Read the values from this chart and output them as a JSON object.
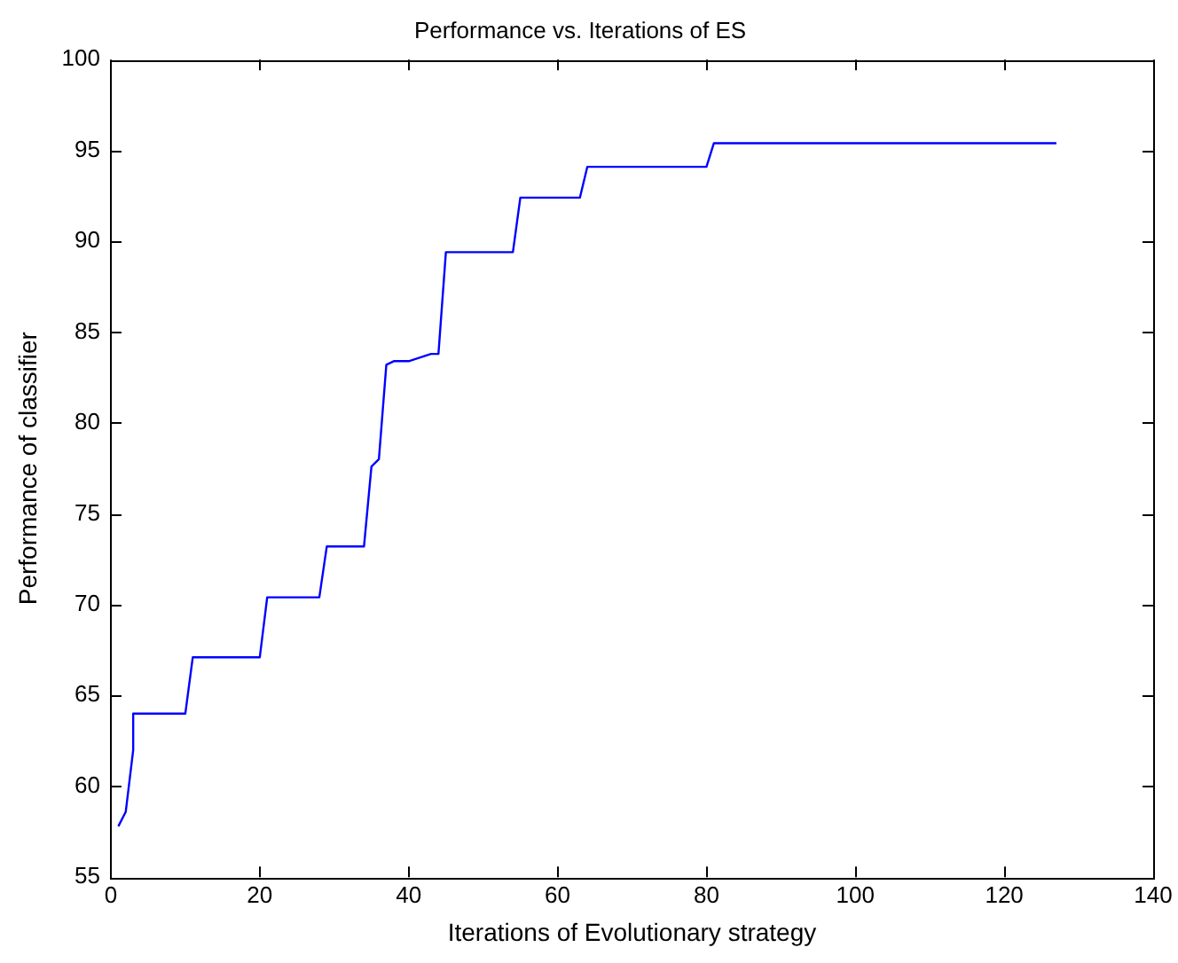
{
  "chart_data": {
    "type": "line",
    "title": "Performance vs. Iterations of ES",
    "xlabel": "Iterations of Evolutionary strategy",
    "ylabel": "Performance of classifier",
    "xlim": [
      0,
      140
    ],
    "xticks": [
      0,
      20,
      40,
      60,
      80,
      100,
      120,
      140
    ],
    "ylim": [
      55,
      100
    ],
    "yticks": [
      55,
      60,
      65,
      70,
      75,
      80,
      85,
      90,
      95,
      100
    ],
    "grid": false,
    "legend": false,
    "marker": "none",
    "line_style": "solid",
    "series": [
      {
        "color": "#0000ff",
        "x": [
          1,
          2,
          3,
          3,
          10,
          11,
          20,
          21,
          28,
          29,
          34,
          35,
          36,
          37,
          38,
          40,
          43,
          44,
          45,
          54,
          55,
          63,
          64,
          80,
          81,
          127
        ],
        "values": [
          57.8,
          58.6,
          62,
          64,
          64,
          67.1,
          67.1,
          70.4,
          70.4,
          73.2,
          73.2,
          77.6,
          78,
          83.2,
          83.4,
          83.4,
          83.8,
          83.8,
          89.4,
          89.4,
          92.4,
          92.4,
          94.1,
          94.1,
          95.4,
          95.4
        ]
      }
    ]
  }
}
